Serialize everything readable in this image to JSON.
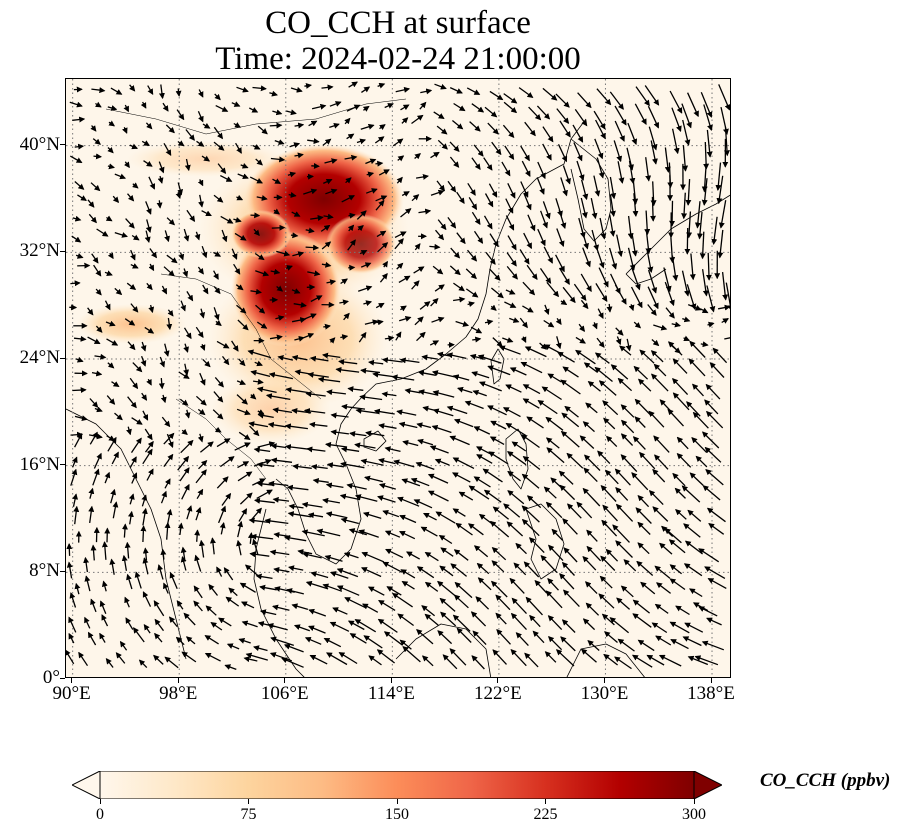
{
  "title": {
    "line1": "CO_CCH at surface",
    "line2": "Time: 2024-02-24 21:00:00"
  },
  "map": {
    "extent": {
      "lon_min": 89.5,
      "lon_max": 139.5,
      "lat_min": 0,
      "lat_max": 45
    },
    "lat_ticks": [
      {
        "value": 0,
        "label": "0°"
      },
      {
        "value": 8,
        "label": "8°N"
      },
      {
        "value": 16,
        "label": "16°N"
      },
      {
        "value": 24,
        "label": "24°N"
      },
      {
        "value": 32,
        "label": "32°N"
      },
      {
        "value": 40,
        "label": "40°N"
      }
    ],
    "lon_ticks": [
      {
        "value": 90,
        "label": "90°E"
      },
      {
        "value": 98,
        "label": "98°E"
      },
      {
        "value": 106,
        "label": "106°E"
      },
      {
        "value": 114,
        "label": "114°E"
      },
      {
        "value": 122,
        "label": "122°E"
      },
      {
        "value": 130,
        "label": "130°E"
      },
      {
        "value": 138,
        "label": "138°E"
      }
    ],
    "gridlines": "dotted",
    "background_color": "#fef6ea",
    "coastline_color": "#000000",
    "vector_color": "#000000",
    "plume_color": "#8b0000"
  },
  "colorbar": {
    "label": "CO_CCH (ppbv)",
    "min": 0,
    "max": 300,
    "extend": "both",
    "cmap": "OrRd",
    "colors": [
      "#fff7ec",
      "#fee8c8",
      "#fdd49e",
      "#fdbb84",
      "#fc8d59",
      "#ef6548",
      "#d7301f",
      "#b30000",
      "#7f0000"
    ],
    "ticks": [
      {
        "value": 0,
        "label": "0"
      },
      {
        "value": 75,
        "label": "75"
      },
      {
        "value": 150,
        "label": "150"
      },
      {
        "value": 225,
        "label": "225"
      },
      {
        "value": 300,
        "label": "300"
      }
    ]
  }
}
